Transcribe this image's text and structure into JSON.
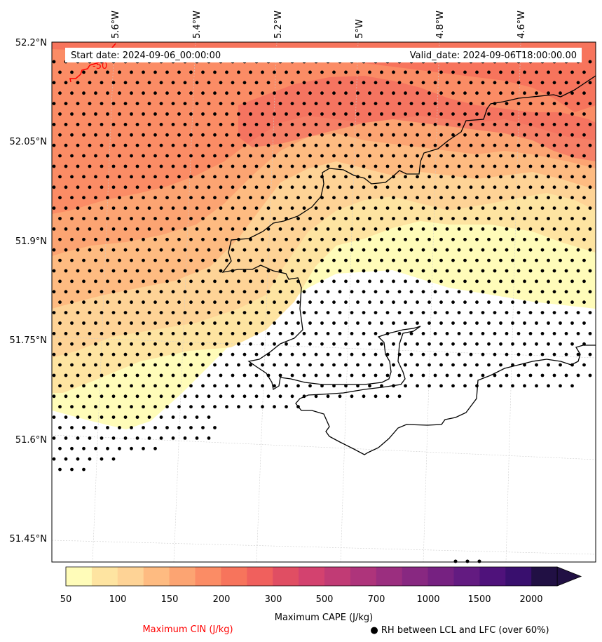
{
  "map": {
    "start_date": "Start date: 2024-09-06_00:00:00",
    "valid_date": "Valid_date: 2024-09-06T18:00:00.00",
    "lon_labels": [
      "5.6°W",
      "5.4°W",
      "5.2°W",
      "5°W",
      "4.8°W",
      "4.6°W"
    ],
    "lat_labels": [
      "52.2°N",
      "52.05°N",
      "51.9°N",
      "51.75°N",
      "51.6°N",
      "51.45°N"
    ],
    "cin_contour_label": "-50",
    "colors": {
      "cin_contour": "#ff0000",
      "coast": "#000000",
      "dots": "#000000",
      "grid": "#cccccc"
    }
  },
  "colorbar": {
    "ticks": [
      "50",
      "100",
      "150",
      "200",
      "300",
      "500",
      "700",
      "1000",
      "1500",
      "2000"
    ],
    "colors": [
      "#fffcb9",
      "#fee4a1",
      "#fed396",
      "#febb81",
      "#fca472",
      "#fb8c65",
      "#f7745c",
      "#f0605d",
      "#e04e63",
      "#d3426f",
      "#c13b75",
      "#ae347b",
      "#9b2e7f",
      "#882881",
      "#762181",
      "#631b81",
      "#4f127b",
      "#390f6e",
      "#211044"
    ],
    "label": "Maximum CAPE (J/kg)",
    "extend": "max"
  },
  "footer": {
    "cin_legend": "Maximum CIN (J/kg)",
    "rh_legend": "● RH between LCL and LFC (over 60%)"
  }
}
